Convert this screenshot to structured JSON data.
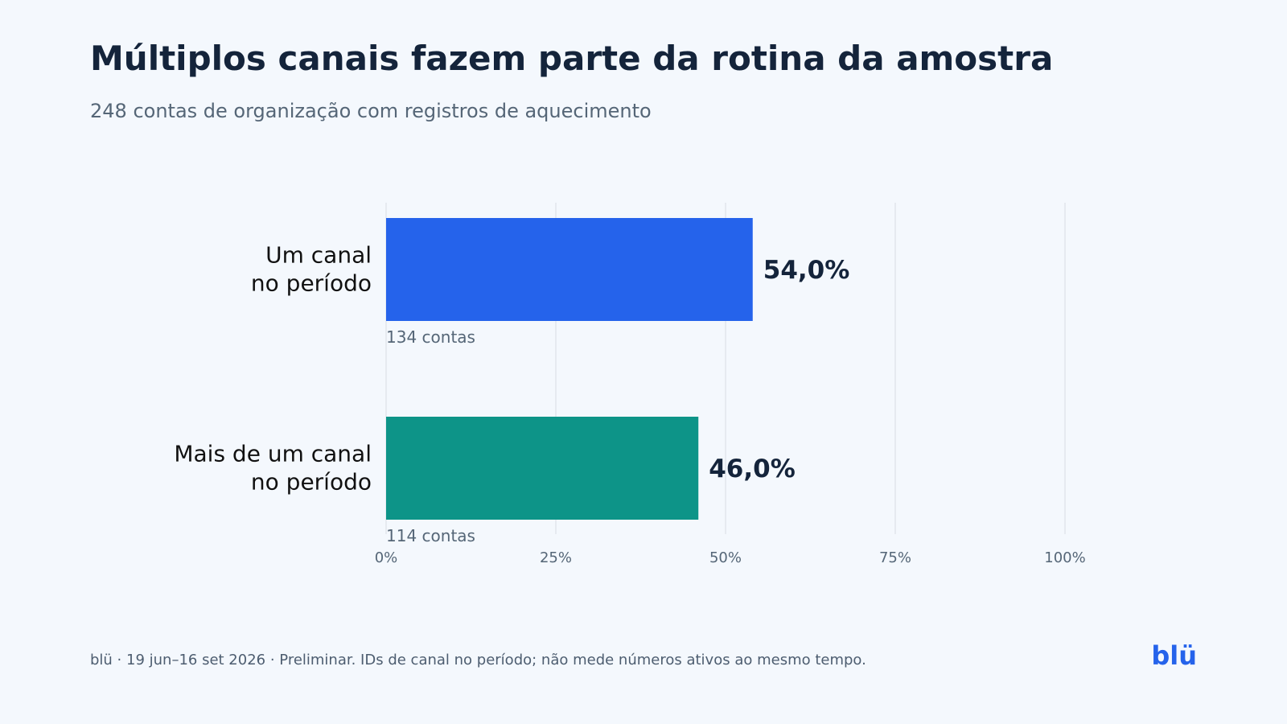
{
  "header": {
    "title": "Múltiplos canais fazem parte da rotina da amostra",
    "subtitle": "248 contas de organização com registros de aquecimento"
  },
  "footer": {
    "note": "blü · 19 jun–16 set 2026 · Preliminar. IDs de canal no período; não mede números ativos ao mesmo tempo.",
    "brand": "blü",
    "brand_color": "#2563eb"
  },
  "chart_data": {
    "type": "bar",
    "orientation": "horizontal",
    "categories": [
      [
        "Um canal",
        "no período"
      ],
      [
        "Mais de um canal",
        "no período"
      ]
    ],
    "values": [
      54.0,
      46.0
    ],
    "value_labels": [
      "54,0%",
      "46,0%"
    ],
    "count_labels": [
      "134 contas",
      "114 contas"
    ],
    "colors": [
      "#2563eb",
      "#0d9488"
    ],
    "xlim": [
      0,
      100
    ],
    "xticks": [
      0,
      25,
      50,
      75,
      100
    ],
    "xtick_labels": [
      "0%",
      "25%",
      "50%",
      "75%",
      "100%"
    ],
    "grid": true
  }
}
